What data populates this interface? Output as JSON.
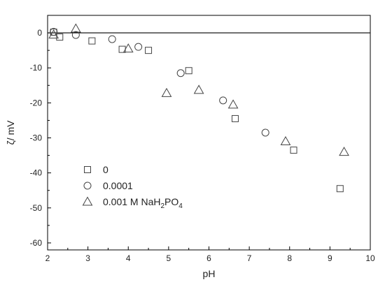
{
  "chart_data": {
    "type": "scatter",
    "xlabel": "pH",
    "ylabel": "ζ/ mV",
    "xlim": [
      2,
      10
    ],
    "ylim": [
      -62,
      5
    ],
    "x_ticks": [
      2,
      3,
      4,
      5,
      6,
      7,
      8,
      9,
      10
    ],
    "y_ticks": [
      0,
      -10,
      -20,
      -30,
      -40,
      -50,
      -60
    ],
    "grid": false,
    "zero_line": true,
    "legend_position": "bottom-left",
    "series": [
      {
        "name": "0",
        "marker": "square",
        "points": [
          [
            2.15,
            0.2
          ],
          [
            2.3,
            -1.2
          ],
          [
            3.1,
            -2.3
          ],
          [
            3.85,
            -4.7
          ],
          [
            4.5,
            -5.0
          ],
          [
            5.5,
            -10.8
          ],
          [
            6.65,
            -24.5
          ],
          [
            8.1,
            -33.5
          ],
          [
            9.25,
            -44.5
          ]
        ]
      },
      {
        "name": "0.0001",
        "marker": "circle",
        "points": [
          [
            2.15,
            0.3
          ],
          [
            2.7,
            -0.6
          ],
          [
            3.6,
            -1.8
          ],
          [
            4.25,
            -4.0
          ],
          [
            5.3,
            -11.5
          ],
          [
            6.35,
            -19.3
          ],
          [
            7.4,
            -28.5
          ]
        ]
      },
      {
        "name": "0.001 M NaH2PO4",
        "legend_label": {
          "prefix": "0.001 M NaH",
          "sub1": "2",
          "mid": "PO",
          "sub2": "4"
        },
        "marker": "triangle",
        "points": [
          [
            2.15,
            -0.5
          ],
          [
            2.7,
            1.2
          ],
          [
            4.0,
            -4.5
          ],
          [
            4.95,
            -17.2
          ],
          [
            5.75,
            -16.3
          ],
          [
            6.6,
            -20.5
          ],
          [
            7.9,
            -31.0
          ],
          [
            9.35,
            -34.0
          ]
        ]
      }
    ]
  }
}
